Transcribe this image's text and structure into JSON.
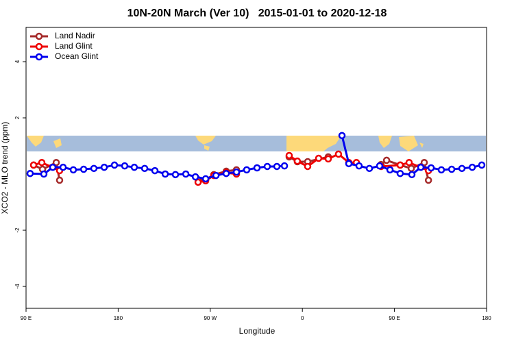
{
  "chart_data": {
    "type": "line",
    "title": "10N-20N March (Ver 10)   2015-01-01 to 2020-12-18",
    "x_label": "Longitude",
    "y_label": "XCO2 - MLO trend (ppm)",
    "xlim": [
      90,
      540
    ],
    "ylim": [
      -4.78,
      5.22
    ],
    "xticks": [
      {
        "value": 90,
        "label": "90 E"
      },
      180,
      {
        "value": 270,
        "label": "90 W"
      },
      {
        "value": 360,
        "label": "0"
      },
      {
        "value": 450,
        "label": "90 E"
      },
      {
        "value": 540,
        "label": "180"
      }
    ],
    "yticks": [
      -4,
      -2,
      2,
      4
    ],
    "legend": "top-left",
    "series": [
      {
        "name": "Land Nadir",
        "color": "#a52a2a",
        "x": [
          97.4,
          106.1,
          119.5,
          122.8,
          null,
          258.1,
          265.5,
          273.5,
          285.6,
          295.6,
          null,
          347.1,
          355.1,
          365.2,
          385.3,
          null,
          436.9,
          442.3,
          455.6,
          466.4,
          479.1,
          483.2
        ],
        "values": [
          0.32,
          0.17,
          0.41,
          -0.22,
          null,
          -0.2,
          -0.2,
          -0.02,
          0.1,
          0.15,
          null,
          0.61,
          0.44,
          0.44,
          0.61,
          null,
          0.34,
          0.49,
          0.32,
          0.2,
          0.41,
          -0.22
        ]
      },
      {
        "name": "Land Glint",
        "color": "#ee0000",
        "x": [
          97.4,
          105.4,
          122.8,
          null,
          258.1,
          265.5,
          273.5,
          285.6,
          295.6,
          null,
          347.1,
          355.1,
          365.2,
          375.9,
          385.3,
          395.3,
          405.4,
          412.8,
          null,
          436.9,
          455.6,
          464.3,
          483.2
        ],
        "values": [
          0.32,
          0.41,
          0.12,
          null,
          -0.29,
          -0.24,
          -0.05,
          0.05,
          0,
          null,
          0.66,
          0.46,
          0.27,
          0.56,
          0.54,
          0.71,
          0.41,
          0.41,
          null,
          0.27,
          0.32,
          0.41,
          0.12
        ]
      },
      {
        "name": "Ocean Glint",
        "color": "#0000ee",
        "x": [
          94.0,
          107.4,
          116.1,
          126.2,
          136.2,
          146.3,
          156.3,
          166.4,
          176.4,
          186.4,
          195.8,
          205.9,
          215.9,
          226.0,
          236.0,
          246.1,
          255.5,
          265.5,
          275.6,
          285.6,
          295.6,
          305.6,
          315.7,
          325.7,
          335.1,
          342.5,
          null,
          398.7,
          405.4,
          415.4,
          425.5,
          435.5,
          445.6,
          455.6,
          467.0,
          475.7,
          485.8,
          495.8,
          505.9,
          515.9,
          526.0,
          535.3
        ],
        "values": [
          0.02,
          0,
          0.24,
          0.24,
          0.15,
          0.17,
          0.2,
          0.24,
          0.32,
          0.29,
          0.24,
          0.2,
          0.12,
          0,
          -0.02,
          0,
          -0.1,
          -0.17,
          -0.05,
          0.02,
          0.07,
          0.15,
          0.22,
          0.27,
          0.27,
          0.29,
          null,
          1.37,
          0.37,
          0.29,
          0.2,
          0.29,
          0.15,
          0.02,
          -0.02,
          0.24,
          0.22,
          0.15,
          0.17,
          0.2,
          0.24,
          0.32
        ]
      }
    ]
  }
}
